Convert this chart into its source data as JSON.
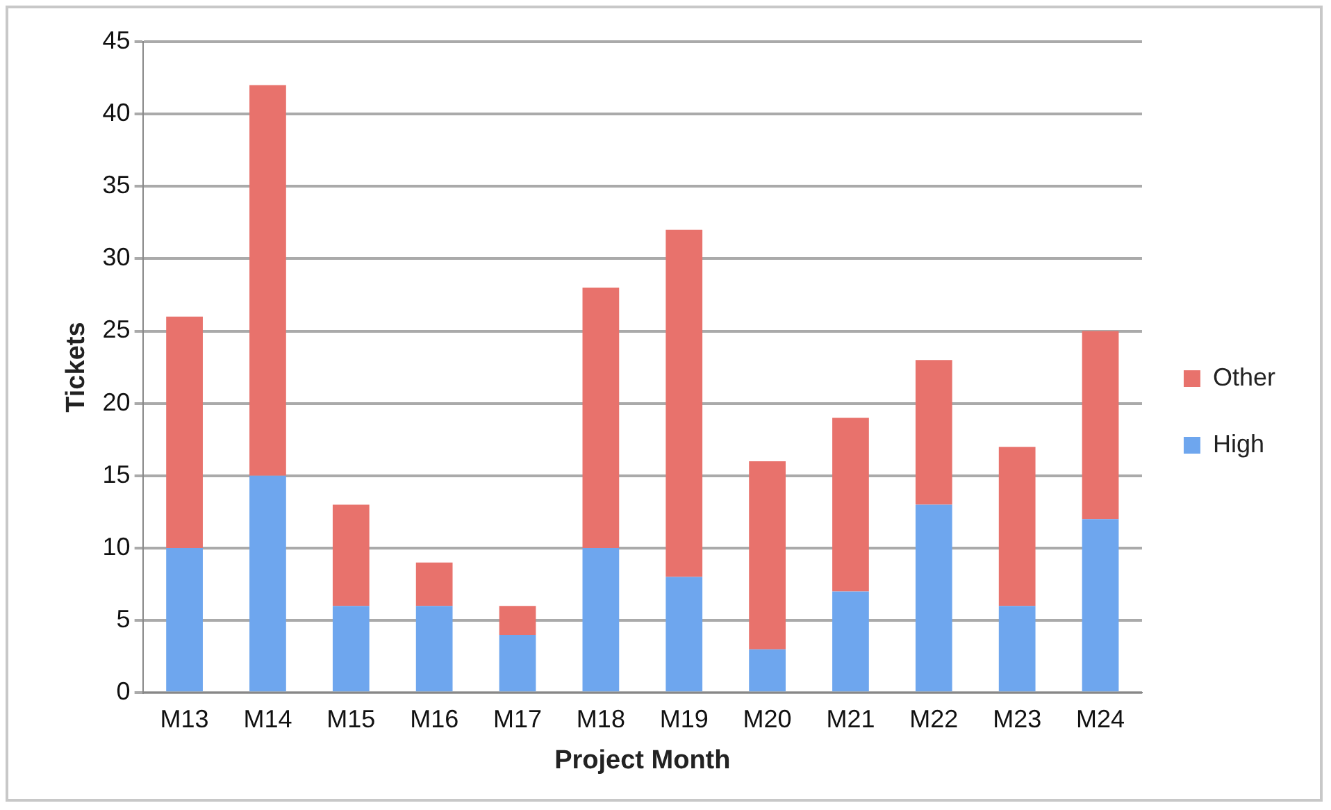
{
  "chart_data": {
    "type": "bar",
    "xlabel": "Project Month",
    "ylabel": "Tickets",
    "categories": [
      "M13",
      "M14",
      "M15",
      "M16",
      "M17",
      "M18",
      "M19",
      "M20",
      "M21",
      "M22",
      "M23",
      "M24"
    ],
    "series": [
      {
        "name": "High",
        "color": "#6ea6ee",
        "values": [
          10,
          15,
          6,
          6,
          4,
          10,
          8,
          3,
          7,
          13,
          6,
          12
        ]
      },
      {
        "name": "Other",
        "color": "#e8726c",
        "values": [
          16,
          27,
          7,
          3,
          2,
          18,
          24,
          13,
          12,
          10,
          11,
          13
        ]
      }
    ],
    "stacked": true,
    "ylim": [
      0,
      45
    ],
    "yticks": [
      0,
      5,
      10,
      15,
      20,
      25,
      30,
      35,
      40,
      45
    ],
    "grid": "y",
    "legend": "right"
  }
}
